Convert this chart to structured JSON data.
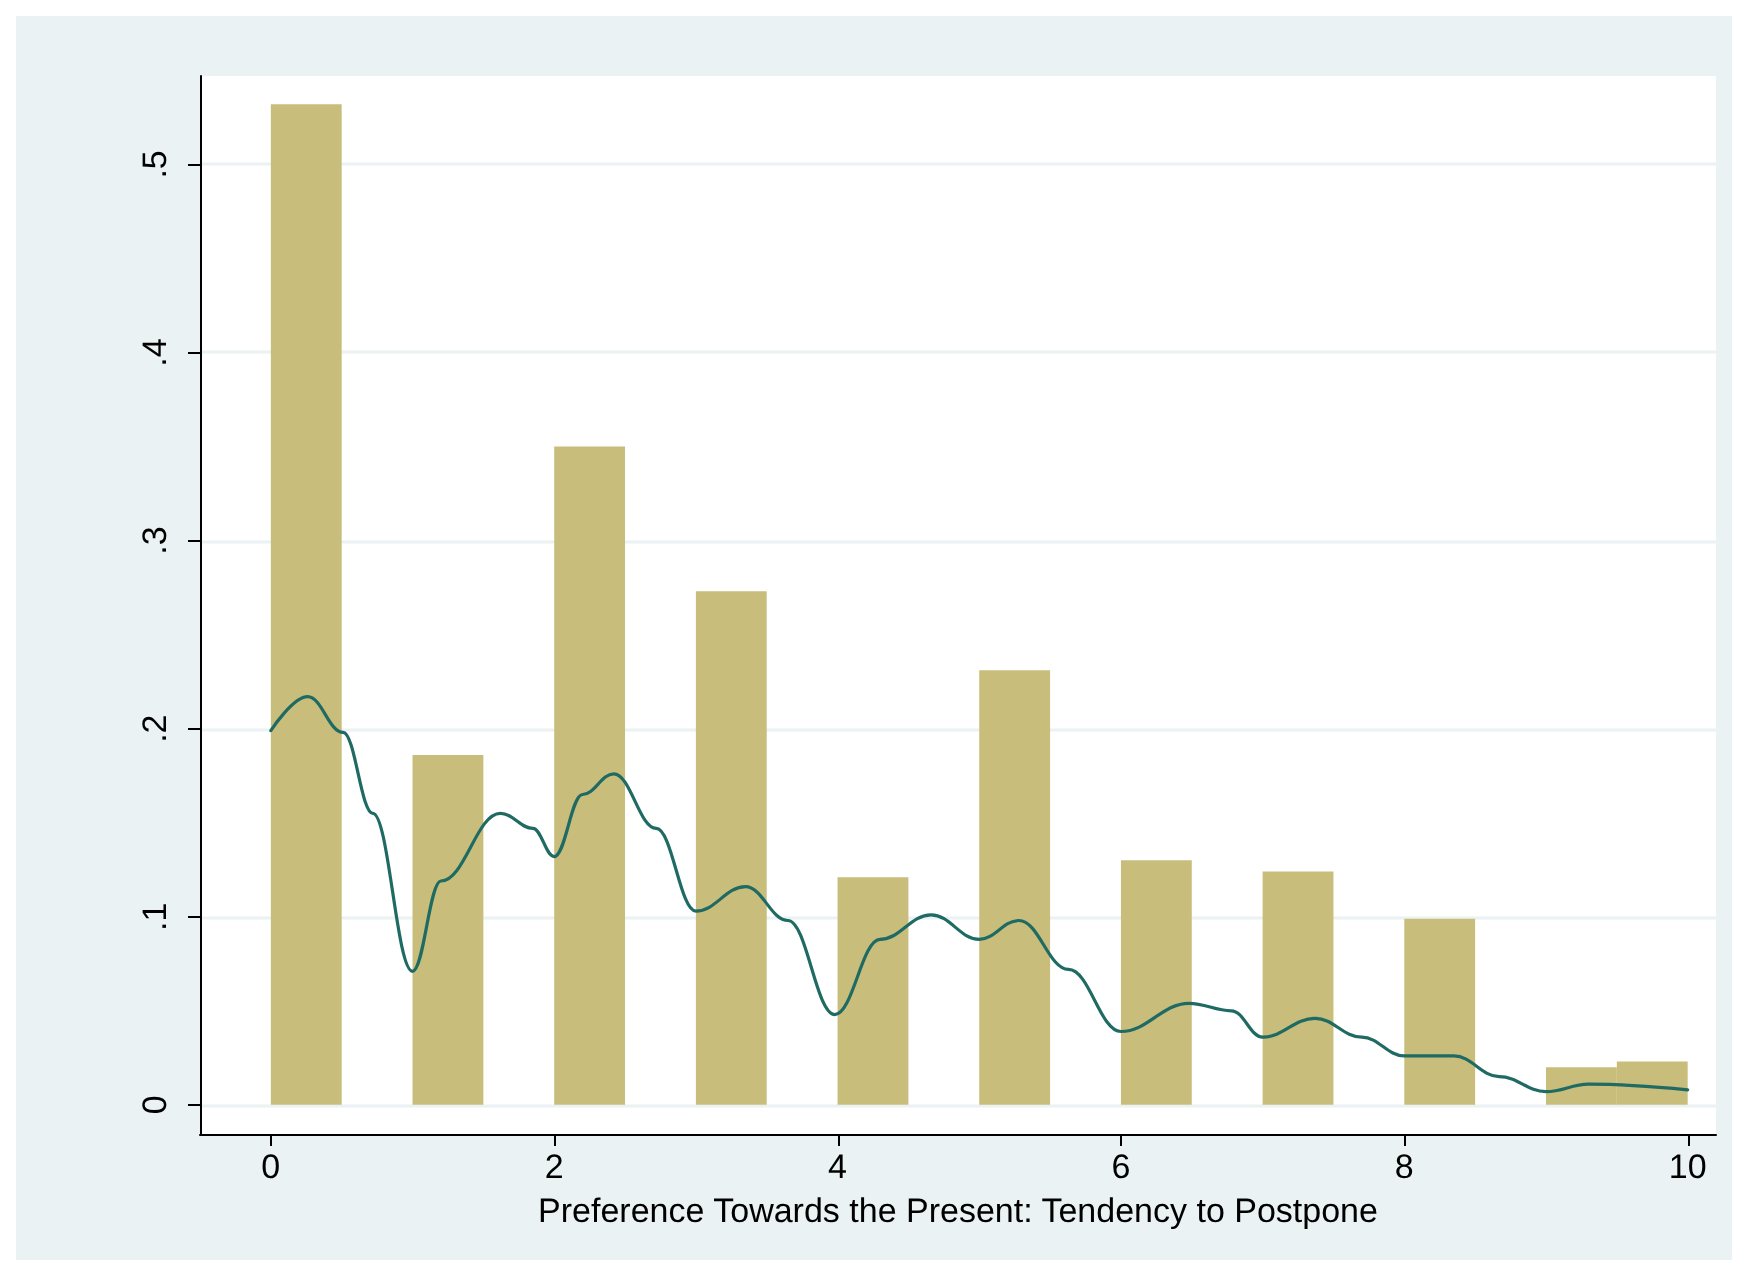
{
  "chart_data": {
    "type": "histogram",
    "xlabel": "Preference Towards the Present: Tendency to Postpone",
    "bins": [
      0,
      0.5,
      1,
      1.5,
      2,
      2.5,
      3,
      3.5,
      4,
      4.5,
      5,
      5.5,
      6,
      6.5,
      7,
      7.5,
      8,
      8.5,
      9,
      9.5,
      10
    ],
    "values": [
      0.532,
      0,
      0.186,
      0,
      0.35,
      0,
      0.273,
      0,
      0.121,
      0,
      0.231,
      0,
      0.13,
      0,
      0.124,
      0,
      0.099,
      0,
      0.02,
      0.023
    ],
    "color": "#c9bd7c",
    "series": [
      {
        "type": "line",
        "color": "#1f6b63",
        "x": [
          0,
          0.26,
          0.51,
          0.72,
          1.0,
          1.2,
          1.62,
          1.85,
          2.0,
          2.2,
          2.42,
          2.72,
          3.0,
          3.35,
          3.65,
          3.98,
          4.3,
          4.66,
          5.0,
          5.28,
          5.63,
          6.0,
          6.48,
          6.78,
          7.0,
          7.37,
          7.7,
          8.0,
          8.35,
          8.67,
          9.0,
          9.3,
          10
        ],
        "values": [
          0.199,
          0.217,
          0.198,
          0.155,
          0.071,
          0.119,
          0.155,
          0.147,
          0.132,
          0.165,
          0.176,
          0.147,
          0.103,
          0.116,
          0.098,
          0.048,
          0.088,
          0.101,
          0.088,
          0.098,
          0.072,
          0.039,
          0.054,
          0.05,
          0.036,
          0.046,
          0.036,
          0.026,
          0.026,
          0.015,
          0.007,
          0.011,
          0.008
        ]
      }
    ],
    "xlim": [
      -0.5,
      10.2
    ],
    "xticks": [
      0,
      2,
      4,
      6,
      8,
      10
    ],
    "ylim": [
      -0.0155,
      0.547
    ],
    "yticks": [
      {
        "value": 0,
        "label": "0"
      },
      {
        "value": 0.1,
        "label": ".1"
      },
      {
        "value": 0.2,
        "label": ".2"
      },
      {
        "value": 0.3,
        "label": ".3"
      },
      {
        "value": 0.4,
        "label": ".4"
      },
      {
        "value": 0.5,
        "label": ".5"
      }
    ],
    "grid": "y",
    "legend": false,
    "marker": "none",
    "line_style": "solid"
  }
}
